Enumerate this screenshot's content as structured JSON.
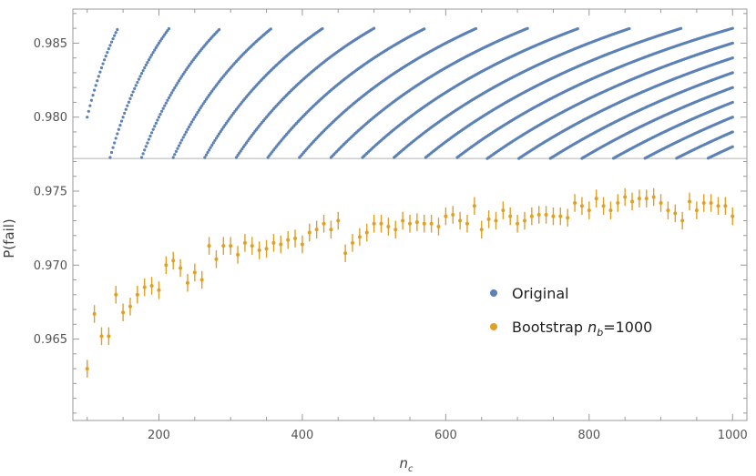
{
  "chart_data": {
    "type": "scatter",
    "xlabel": "n_c",
    "ylabel": "P(fail)",
    "xlim": [
      80,
      1020
    ],
    "ylim": [
      0.9595,
      0.9873
    ],
    "xticks": [
      200,
      400,
      600,
      800,
      1000
    ],
    "yticks": [
      0.965,
      0.97,
      0.975,
      0.98,
      0.985
    ],
    "yticklabels": [
      "0.965",
      "0.970",
      "0.975",
      "0.980",
      "0.985"
    ],
    "reference_line": 0.9772,
    "grid": false,
    "legend": "center-right",
    "colors": {
      "original": "#5b81b8",
      "bootstrap": "#e0a025",
      "reference": "#c8c8c8",
      "axis": "#999999"
    },
    "series": [
      {
        "name": "Original",
        "marker": "dot",
        "generation": "for each n_c from 100 to 1000 step 2, points at P = k/n_c for all integers k with 0.9772 <= k/n_c <= 0.9860 (upper envelope bounded by the ceiling of the point cloud)",
        "nc_min": 100,
        "nc_max": 1000,
        "nc_step": 2,
        "p_min": 0.9772,
        "p_max": 0.986
      },
      {
        "name": "Bootstrap n_b=1000",
        "marker": "dot-with-errorbar",
        "x": [
          100,
          110,
          120,
          130,
          140,
          150,
          160,
          170,
          180,
          190,
          200,
          210,
          220,
          230,
          240,
          250,
          260,
          270,
          280,
          290,
          300,
          310,
          320,
          330,
          340,
          350,
          360,
          370,
          380,
          390,
          400,
          410,
          420,
          430,
          440,
          450,
          460,
          470,
          480,
          490,
          500,
          510,
          520,
          530,
          540,
          550,
          560,
          570,
          580,
          590,
          600,
          610,
          620,
          630,
          640,
          650,
          660,
          670,
          680,
          690,
          700,
          710,
          720,
          730,
          740,
          750,
          760,
          770,
          780,
          790,
          800,
          810,
          820,
          830,
          840,
          850,
          860,
          870,
          880,
          890,
          900,
          910,
          920,
          930,
          940,
          950,
          960,
          970,
          980,
          990,
          1000
        ],
        "y": [
          0.963,
          0.9667,
          0.9652,
          0.9652,
          0.968,
          0.9668,
          0.9672,
          0.968,
          0.9685,
          0.9686,
          0.9683,
          0.97,
          0.9703,
          0.9698,
          0.9688,
          0.9695,
          0.969,
          0.9713,
          0.9704,
          0.9713,
          0.9713,
          0.9707,
          0.9715,
          0.9713,
          0.971,
          0.9711,
          0.9715,
          0.9714,
          0.9717,
          0.9718,
          0.9714,
          0.9722,
          0.9724,
          0.9728,
          0.9724,
          0.973,
          0.9708,
          0.9715,
          0.9719,
          0.9722,
          0.9728,
          0.9728,
          0.9726,
          0.9724,
          0.973,
          0.9728,
          0.9729,
          0.9728,
          0.9728,
          0.9726,
          0.9733,
          0.9734,
          0.973,
          0.9728,
          0.974,
          0.9724,
          0.9731,
          0.973,
          0.9737,
          0.9733,
          0.9728,
          0.973,
          0.9733,
          0.9734,
          0.9734,
          0.9733,
          0.9733,
          0.9732,
          0.9742,
          0.974,
          0.9737,
          0.9745,
          0.974,
          0.9737,
          0.9742,
          0.9746,
          0.9743,
          0.9745,
          0.9745,
          0.9746,
          0.9742,
          0.9737,
          0.9735,
          0.973,
          0.9743,
          0.9737,
          0.9742,
          0.9742,
          0.974,
          0.974,
          0.9733
        ],
        "err": 0.0006
      }
    ]
  },
  "legend": {
    "original_label": "Original",
    "bootstrap_label_prefix": "Bootstrap ",
    "bootstrap_label_var": "n",
    "bootstrap_label_sub": "b",
    "bootstrap_label_suffix": "=1000"
  },
  "axes": {
    "y_title": "P(fail)",
    "x_title_var": "n",
    "x_title_sub": "c"
  }
}
